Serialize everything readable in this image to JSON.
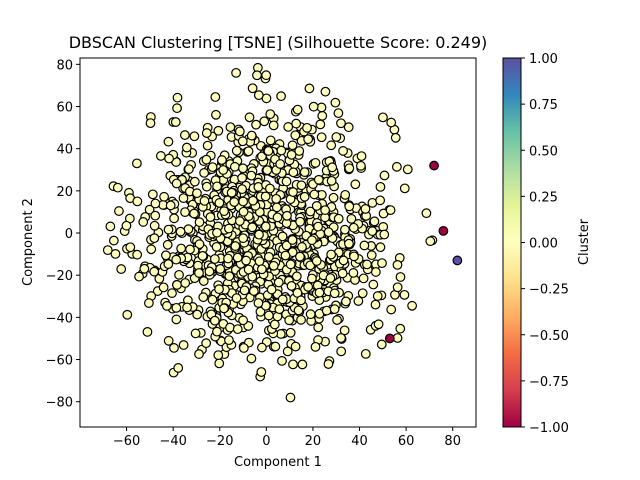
{
  "chart_data": {
    "type": "scatter",
    "title": "DBSCAN Clustering [TSNE] (Silhouette Score: 0.249)",
    "xlabel": "Component 1",
    "ylabel": "Component 2",
    "xlim": [
      -80,
      90
    ],
    "ylim": [
      -92,
      83
    ],
    "xticks": [
      -60,
      -40,
      -20,
      0,
      20,
      40,
      60,
      80
    ],
    "yticks": [
      -80,
      -60,
      -40,
      -20,
      0,
      20,
      40,
      60,
      80
    ],
    "grid": false,
    "colorbar": {
      "label": "Cluster",
      "range": [
        -1,
        1
      ],
      "ticks": [
        -1.0,
        -0.75,
        -0.5,
        -0.25,
        0.0,
        0.25,
        0.5,
        0.75,
        1.0
      ],
      "tick_labels": [
        "−1.00",
        "−0.75",
        "−0.50",
        "−0.25",
        "0.00",
        "0.25",
        "0.50",
        "0.75",
        "1.00"
      ],
      "colormap": "Spectral"
    },
    "series": [
      {
        "cluster": 0,
        "color": "#fefebd",
        "approx_point_count": 1150,
        "distribution": "dense roughly circular cloud centered near (0, 0), x range about -72 to 68, y range about -83 to 74"
      },
      {
        "cluster": -1,
        "color": "#9e0142",
        "points": [
          [
            72,
            32
          ],
          [
            76,
            1
          ],
          [
            53,
            -50
          ]
        ]
      },
      {
        "cluster": 1,
        "color": "#5e4fa2",
        "points": [
          [
            82,
            -13
          ]
        ]
      }
    ]
  }
}
